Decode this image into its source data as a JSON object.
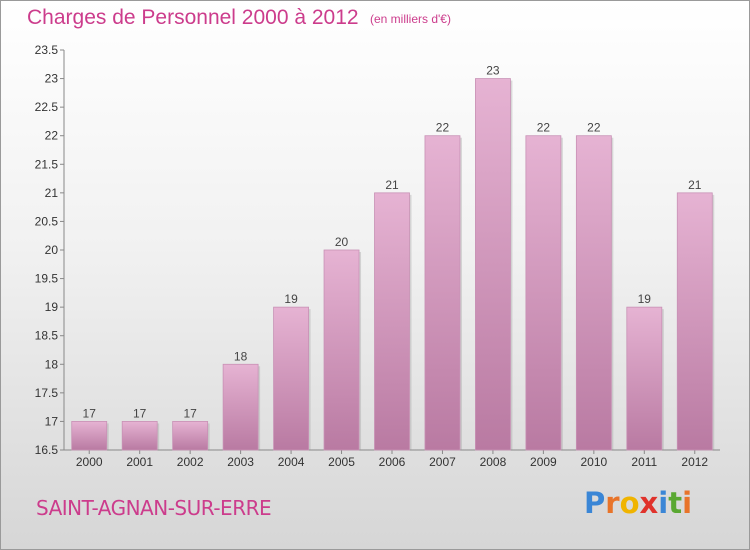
{
  "header": {
    "title": "Charges de Personnel 2000 à 2012",
    "subtitle": "(en milliers d'€)"
  },
  "footer": {
    "place": "SAINT-AGNAN-SUR-ERRE",
    "logo_letters": [
      "P",
      "r",
      "o",
      "x",
      "i",
      "t",
      "i"
    ],
    "logo_colors": [
      "#3a86d6",
      "#e8742a",
      "#f0b400",
      "#e0322b",
      "#3a86d6",
      "#5aa832",
      "#e8742a"
    ]
  },
  "colors": {
    "bar": "#cf8fb7",
    "bar_light": "#e6b3d3",
    "bar_dark": "#b97aa2",
    "title": "#cc3c8c"
  },
  "chart_data": {
    "type": "bar",
    "categories": [
      "2000",
      "2001",
      "2002",
      "2003",
      "2004",
      "2005",
      "2006",
      "2007",
      "2008",
      "2009",
      "2010",
      "2011",
      "2012"
    ],
    "values": [
      17,
      17,
      17,
      18,
      19,
      20,
      21,
      22,
      23,
      22,
      22,
      19,
      21
    ],
    "ylim": [
      16.5,
      23.5
    ],
    "yticks": [
      "16.5",
      "17",
      "17.5",
      "18",
      "18.5",
      "19",
      "19.5",
      "20",
      "20.5",
      "21",
      "21.5",
      "22",
      "22.5",
      "23",
      "23.5"
    ],
    "grid": false
  }
}
